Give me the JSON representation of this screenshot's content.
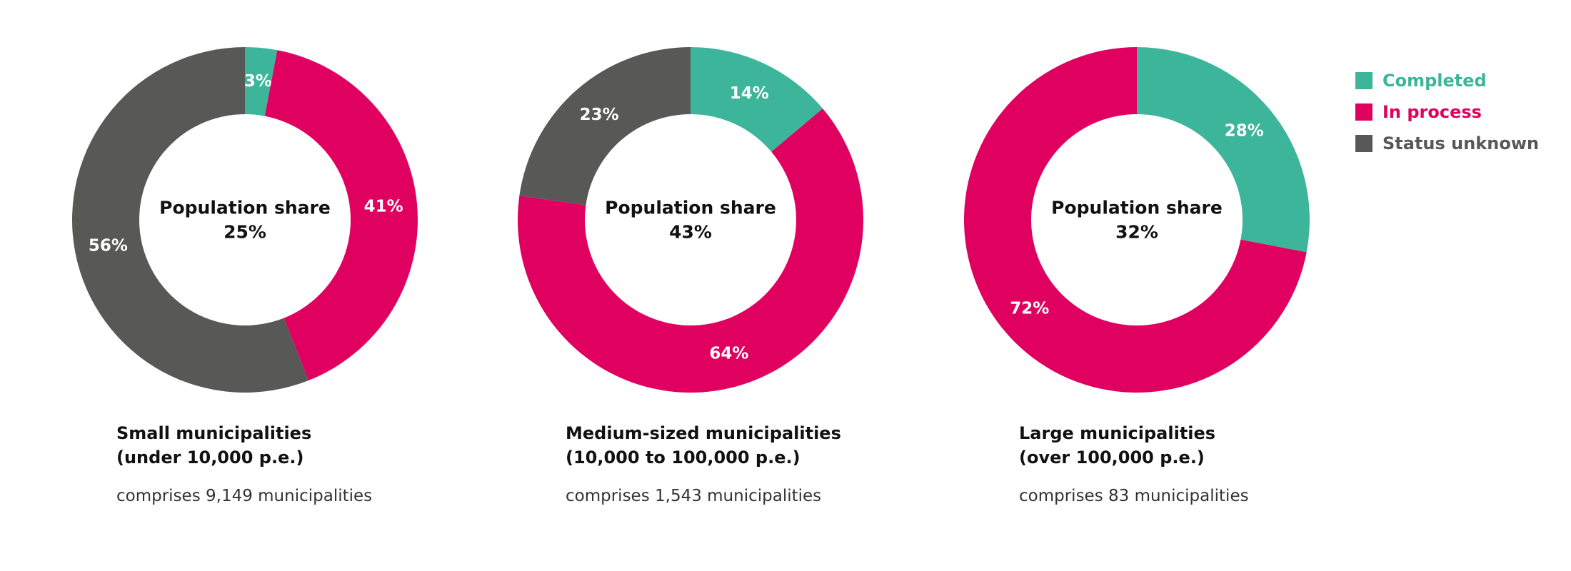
{
  "colors": {
    "completed": "#3db59a",
    "in_process": "#e0005f",
    "status_unknown": "#585856"
  },
  "legend": [
    {
      "name": "Completed",
      "color": "#3db59a"
    },
    {
      "name": "In process",
      "color": "#e0005f"
    },
    {
      "name": "Status unknown",
      "color": "#585856"
    }
  ],
  "chart_data": [
    {
      "type": "pie",
      "center_label": "Population share",
      "center_value": "25%",
      "caption_line1": "Small municipalities",
      "caption_line2": "(under 10,000 p.e.)",
      "caption_desc": "comprises 9,149 municipalities",
      "slices": [
        {
          "name": "Completed",
          "value": 3,
          "label": "3%"
        },
        {
          "name": "In process",
          "value": 41,
          "label": "41%"
        },
        {
          "name": "Status unknown",
          "value": 56,
          "label": "56%"
        }
      ]
    },
    {
      "type": "pie",
      "center_label": "Population share",
      "center_value": "43%",
      "caption_line1": "Medium-sized municipalities",
      "caption_line2": "(10,000 to 100,000 p.e.)",
      "caption_desc": "comprises 1,543 municipalities",
      "slices": [
        {
          "name": "Completed",
          "value": 14,
          "label": "14%"
        },
        {
          "name": "In process",
          "value": 64,
          "label": "64%"
        },
        {
          "name": "Status unknown",
          "value": 23,
          "label": "23%"
        }
      ]
    },
    {
      "type": "pie",
      "center_label": "Population share",
      "center_value": "32%",
      "caption_line1": "Large municipalities",
      "caption_line2": "(over 100,000 p.e.)",
      "caption_desc": "comprises 83 municipalities",
      "slices": [
        {
          "name": "Completed",
          "value": 28,
          "label": "28%"
        },
        {
          "name": "In process",
          "value": 72,
          "label": "72%"
        }
      ]
    }
  ]
}
